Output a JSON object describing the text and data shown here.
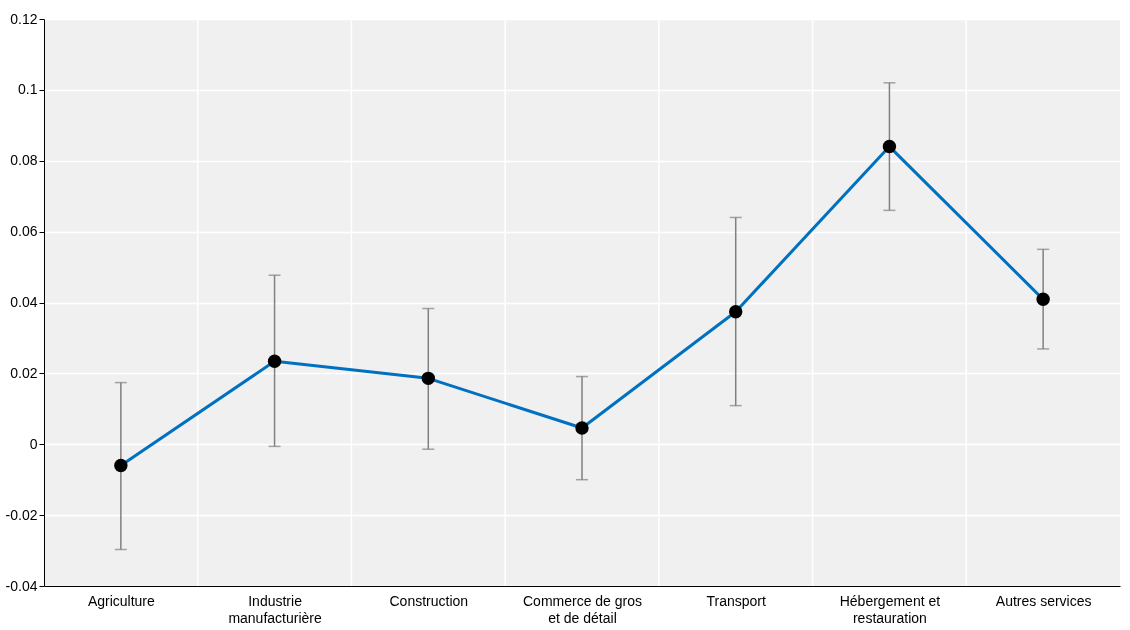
{
  "chart_data": {
    "type": "line",
    "categories": [
      "Agriculture",
      "Industrie manufacturière",
      "Construction",
      "Commerce de gros et de détail",
      "Transport",
      "Hébergement et restauration",
      "Autres services"
    ],
    "series": [
      {
        "color": "#0070c0",
        "values": [
          -0.006,
          0.0234,
          0.0186,
          0.0046,
          0.0374,
          0.084,
          0.0409
        ],
        "errors": [
          [
            -0.0297,
            0.0174
          ],
          [
            -0.0006,
            0.0477
          ],
          [
            -0.0014,
            0.0383
          ],
          [
            -0.01,
            0.0191
          ],
          [
            0.0109,
            0.064
          ],
          [
            0.066,
            0.102
          ],
          [
            0.0269,
            0.055
          ]
        ]
      }
    ],
    "ylim": [
      -0.04,
      0.12
    ],
    "yticks": [
      -0.04,
      -0.02,
      0,
      0.02,
      0.04,
      0.06,
      0.08,
      0.1,
      0.12
    ],
    "marker": "circle",
    "line_style": "solid",
    "grid": true
  }
}
